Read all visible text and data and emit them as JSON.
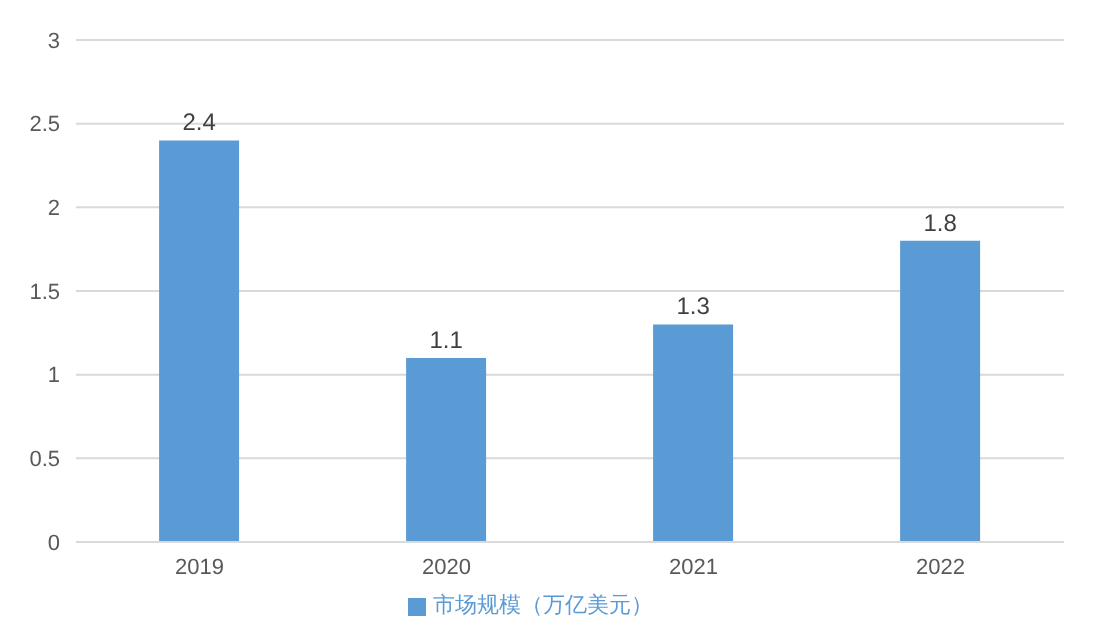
{
  "chart_data": {
    "type": "bar",
    "categories": [
      "2019",
      "2020",
      "2021",
      "2022"
    ],
    "series": [
      {
        "name": "市场规模（万亿美元）",
        "color": "#5b9bd5",
        "values": [
          2.4,
          1.1,
          1.3,
          1.8
        ]
      }
    ],
    "ylim": [
      0,
      3
    ],
    "yticks": [
      0,
      0.5,
      1,
      1.5,
      2,
      2.5,
      3
    ],
    "grid": "y",
    "legend": "bottom",
    "data_labels": true
  }
}
